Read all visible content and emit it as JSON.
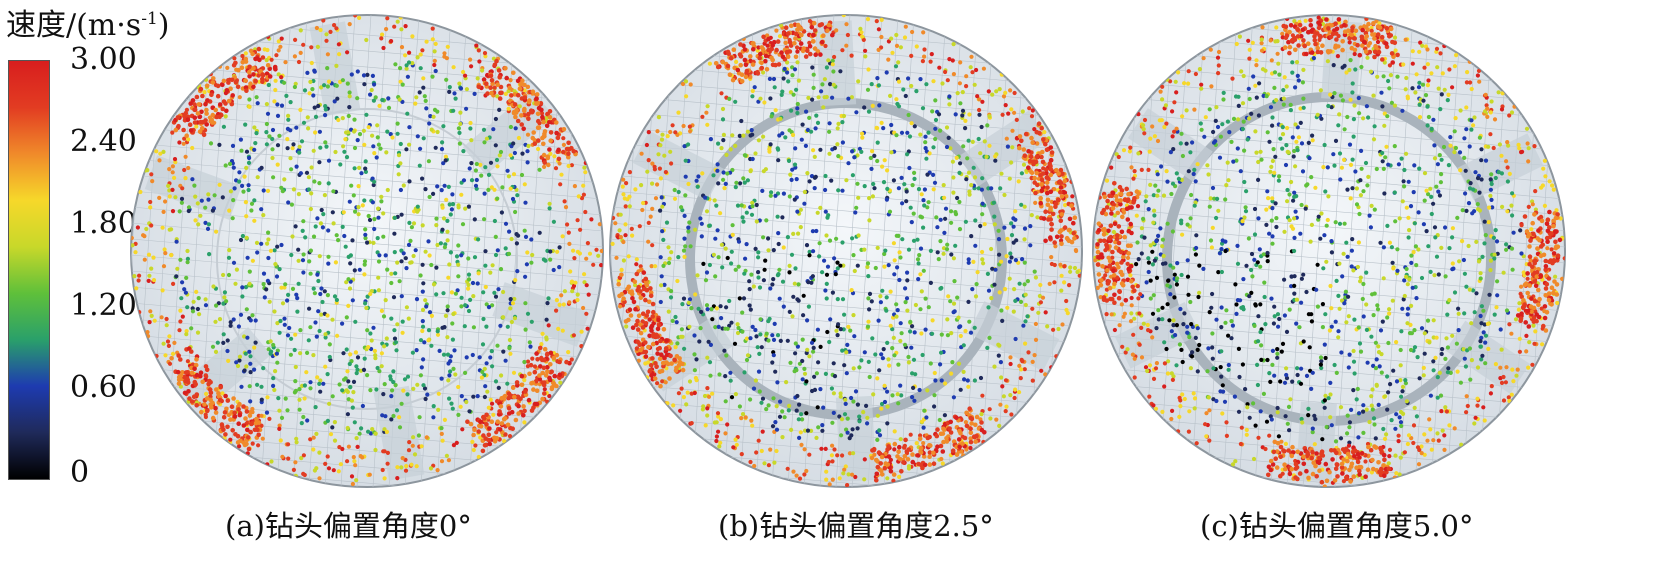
{
  "legend": {
    "title_main": "速度/(m·s",
    "title_exp": "-1",
    "title_close": ")",
    "ticks": [
      "3.00",
      "2.40",
      "1.80",
      "1.20",
      "0.60",
      "0"
    ],
    "tick_values": [
      3.0,
      2.4,
      1.8,
      1.2,
      0.6,
      0.0
    ],
    "range": [
      0,
      3.0
    ],
    "colors": [
      "#000000",
      "#1f2a5a",
      "#1e3bb0",
      "#2aa06a",
      "#5fc03a",
      "#c8d82a",
      "#f6d82a",
      "#f08a2a",
      "#e23c22",
      "#d81e1e"
    ]
  },
  "panels": [
    {
      "caption": "(a)钻头偏置角度0°",
      "offset_angle_deg": 0
    },
    {
      "caption": "(b)钻头偏置角度2.5°",
      "offset_angle_deg": 2.5
    },
    {
      "caption": "(c)钻头偏置角度5.0°",
      "offset_angle_deg": 5.0
    }
  ]
}
